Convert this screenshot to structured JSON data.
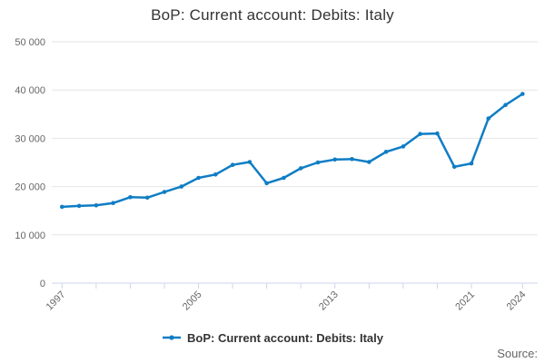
{
  "title": "BoP: Current account: Debits: Italy",
  "legend": {
    "label": "BoP: Current account: Debits: Italy"
  },
  "source_label": "Source:",
  "colors": {
    "series": "#0f7dc4",
    "grid": "#e6e6e6",
    "axis": "#ccd6eb",
    "tick_text": "#666666",
    "title_text": "#333333",
    "legend_text": "#333333",
    "source_text": "#666666"
  },
  "chart_data": {
    "type": "line",
    "title": "BoP: Current account: Debits: Italy",
    "xlabel": "",
    "ylabel": "",
    "x": [
      1997,
      1998,
      1999,
      2000,
      2001,
      2002,
      2003,
      2004,
      2005,
      2006,
      2007,
      2008,
      2009,
      2010,
      2011,
      2012,
      2013,
      2014,
      2015,
      2016,
      2017,
      2018,
      2019,
      2020,
      2021,
      2022,
      2023,
      2024
    ],
    "series": [
      {
        "name": "BoP: Current account: Debits: Italy",
        "values": [
          15800,
          16000,
          16100,
          16600,
          17800,
          17700,
          18900,
          20000,
          21800,
          22500,
          24500,
          25100,
          20700,
          21800,
          23800,
          25000,
          25600,
          25700,
          25100,
          27200,
          28300,
          30900,
          31000,
          24100,
          24800,
          34100,
          36900,
          39200
        ]
      }
    ],
    "ylim": [
      0,
      50000
    ],
    "yticks": [
      0,
      10000,
      20000,
      30000,
      40000,
      50000
    ],
    "ytick_labels": [
      "0",
      "10 000",
      "20 000",
      "30 000",
      "40 000",
      "50 000"
    ],
    "xticks_years": [
      1997,
      1999,
      2001,
      2003,
      2005,
      2007,
      2009,
      2011,
      2013,
      2015,
      2017,
      2019,
      2021,
      2024
    ],
    "xtick_labels": [
      "1997",
      "2005",
      "2013",
      "2021",
      "2024"
    ],
    "grid": true,
    "legend_position": "bottom",
    "marker": "circle"
  }
}
